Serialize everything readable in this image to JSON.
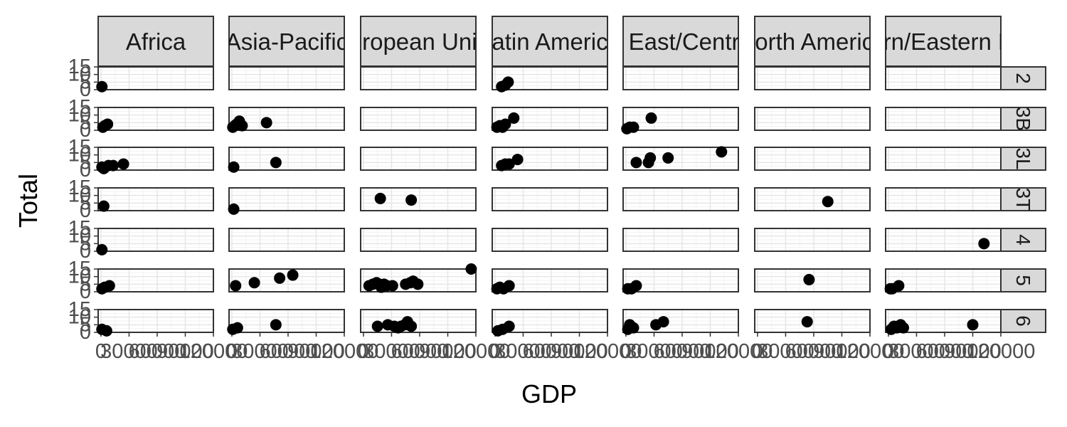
{
  "chart_data": {
    "type": "scatter",
    "facet_layout": "grid",
    "xlabel": "GDP",
    "ylabel": "Total",
    "xlim": [
      -3000,
      120000
    ],
    "ylim": [
      0,
      15
    ],
    "x_ticks": [
      0,
      30000,
      60000,
      90000,
      120000
    ],
    "y_ticks": [
      0,
      5,
      10,
      15
    ],
    "x_tick_labels": [
      "0",
      "30000",
      "60000",
      "90000",
      "120000"
    ],
    "y_tick_labels": [
      "0",
      "5",
      "10",
      "15"
    ],
    "grid": true,
    "legend": "none",
    "column_facets": [
      {
        "label_shown": "Africa"
      },
      {
        "label_shown": "Asia-Pacific"
      },
      {
        "label_shown": "European Union"
      },
      {
        "label_shown": "Latin America"
      },
      {
        "label_shown": "Middle East/Central Asia"
      },
      {
        "label_shown": "North America"
      },
      {
        "label_shown": "Northern/Eastern Europe"
      }
    ],
    "row_facets": [
      {
        "label": "2"
      },
      {
        "label": "3B"
      },
      {
        "label": "3L"
      },
      {
        "label": "3T"
      },
      {
        "label": "4"
      },
      {
        "label": "5"
      },
      {
        "label": "6"
      }
    ],
    "points": [
      {
        "col": 0,
        "row": 0,
        "x": 1000,
        "y": 2
      },
      {
        "col": 3,
        "row": 0,
        "x": 7000,
        "y": 2
      },
      {
        "col": 3,
        "row": 0,
        "x": 11000,
        "y": 3
      },
      {
        "col": 3,
        "row": 0,
        "x": 14000,
        "y": 5
      },
      {
        "col": 0,
        "row": 1,
        "x": 2000,
        "y": 2
      },
      {
        "col": 0,
        "row": 1,
        "x": 4000,
        "y": 3
      },
      {
        "col": 0,
        "row": 1,
        "x": 7000,
        "y": 4
      },
      {
        "col": 1,
        "row": 1,
        "x": 1000,
        "y": 2
      },
      {
        "col": 1,
        "row": 1,
        "x": 3000,
        "y": 3
      },
      {
        "col": 1,
        "row": 1,
        "x": 5000,
        "y": 4
      },
      {
        "col": 1,
        "row": 1,
        "x": 8000,
        "y": 6
      },
      {
        "col": 1,
        "row": 1,
        "x": 11000,
        "y": 3
      },
      {
        "col": 1,
        "row": 1,
        "x": 37000,
        "y": 5
      },
      {
        "col": 3,
        "row": 1,
        "x": 2000,
        "y": 2
      },
      {
        "col": 3,
        "row": 1,
        "x": 5000,
        "y": 3
      },
      {
        "col": 3,
        "row": 1,
        "x": 8000,
        "y": 2
      },
      {
        "col": 3,
        "row": 1,
        "x": 11000,
        "y": 4
      },
      {
        "col": 3,
        "row": 1,
        "x": 20000,
        "y": 8
      },
      {
        "col": 4,
        "row": 1,
        "x": 1000,
        "y": 1
      },
      {
        "col": 4,
        "row": 1,
        "x": 4000,
        "y": 2
      },
      {
        "col": 4,
        "row": 1,
        "x": 8000,
        "y": 2
      },
      {
        "col": 4,
        "row": 1,
        "x": 27000,
        "y": 8
      },
      {
        "col": 0,
        "row": 2,
        "x": 1000,
        "y": 2
      },
      {
        "col": 0,
        "row": 2,
        "x": 3000,
        "y": 1
      },
      {
        "col": 0,
        "row": 2,
        "x": 8000,
        "y": 3
      },
      {
        "col": 0,
        "row": 2,
        "x": 13000,
        "y": 3
      },
      {
        "col": 0,
        "row": 2,
        "x": 24000,
        "y": 4
      },
      {
        "col": 1,
        "row": 2,
        "x": 2000,
        "y": 2
      },
      {
        "col": 1,
        "row": 2,
        "x": 47000,
        "y": 5
      },
      {
        "col": 3,
        "row": 2,
        "x": 7000,
        "y": 3
      },
      {
        "col": 3,
        "row": 2,
        "x": 11000,
        "y": 4
      },
      {
        "col": 3,
        "row": 2,
        "x": 15000,
        "y": 4
      },
      {
        "col": 3,
        "row": 2,
        "x": 24000,
        "y": 7
      },
      {
        "col": 4,
        "row": 2,
        "x": 11000,
        "y": 5
      },
      {
        "col": 4,
        "row": 2,
        "x": 24000,
        "y": 5
      },
      {
        "col": 4,
        "row": 2,
        "x": 26000,
        "y": 8
      },
      {
        "col": 4,
        "row": 2,
        "x": 45000,
        "y": 8
      },
      {
        "col": 4,
        "row": 2,
        "x": 102000,
        "y": 12
      },
      {
        "col": 0,
        "row": 3,
        "x": 3000,
        "y": 3
      },
      {
        "col": 1,
        "row": 3,
        "x": 2000,
        "y": 1
      },
      {
        "col": 2,
        "row": 3,
        "x": 18000,
        "y": 8
      },
      {
        "col": 2,
        "row": 3,
        "x": 51000,
        "y": 7
      },
      {
        "col": 5,
        "row": 3,
        "x": 75000,
        "y": 6
      },
      {
        "col": 0,
        "row": 4,
        "x": 1000,
        "y": 1
      },
      {
        "col": 6,
        "row": 4,
        "x": 102000,
        "y": 5
      },
      {
        "col": 0,
        "row": 5,
        "x": 1000,
        "y": 2
      },
      {
        "col": 0,
        "row": 5,
        "x": 4000,
        "y": 3
      },
      {
        "col": 0,
        "row": 5,
        "x": 9000,
        "y": 4
      },
      {
        "col": 1,
        "row": 5,
        "x": 4000,
        "y": 4
      },
      {
        "col": 1,
        "row": 5,
        "x": 24000,
        "y": 6
      },
      {
        "col": 1,
        "row": 5,
        "x": 51000,
        "y": 9
      },
      {
        "col": 1,
        "row": 5,
        "x": 65000,
        "y": 11
      },
      {
        "col": 2,
        "row": 5,
        "x": 6000,
        "y": 4
      },
      {
        "col": 2,
        "row": 5,
        "x": 10000,
        "y": 5
      },
      {
        "col": 2,
        "row": 5,
        "x": 14000,
        "y": 6
      },
      {
        "col": 2,
        "row": 5,
        "x": 17000,
        "y": 5
      },
      {
        "col": 2,
        "row": 5,
        "x": 19000,
        "y": 3
      },
      {
        "col": 2,
        "row": 5,
        "x": 22000,
        "y": 5
      },
      {
        "col": 2,
        "row": 5,
        "x": 25000,
        "y": 4
      },
      {
        "col": 2,
        "row": 5,
        "x": 31000,
        "y": 4
      },
      {
        "col": 2,
        "row": 5,
        "x": 45000,
        "y": 5
      },
      {
        "col": 2,
        "row": 5,
        "x": 50000,
        "y": 6
      },
      {
        "col": 2,
        "row": 5,
        "x": 53000,
        "y": 7
      },
      {
        "col": 2,
        "row": 5,
        "x": 58000,
        "y": 5
      },
      {
        "col": 2,
        "row": 5,
        "x": 115000,
        "y": 15
      },
      {
        "col": 3,
        "row": 5,
        "x": 2000,
        "y": 2
      },
      {
        "col": 3,
        "row": 5,
        "x": 5000,
        "y": 3
      },
      {
        "col": 3,
        "row": 5,
        "x": 9000,
        "y": 2
      },
      {
        "col": 3,
        "row": 5,
        "x": 15000,
        "y": 4
      },
      {
        "col": 4,
        "row": 5,
        "x": 2000,
        "y": 2
      },
      {
        "col": 4,
        "row": 5,
        "x": 6000,
        "y": 2
      },
      {
        "col": 4,
        "row": 5,
        "x": 11000,
        "y": 4
      },
      {
        "col": 5,
        "row": 5,
        "x": 55000,
        "y": 8
      },
      {
        "col": 6,
        "row": 5,
        "x": 2000,
        "y": 2
      },
      {
        "col": 6,
        "row": 5,
        "x": 4000,
        "y": 2
      },
      {
        "col": 6,
        "row": 5,
        "x": 11000,
        "y": 4
      },
      {
        "col": 0,
        "row": 6,
        "x": 1000,
        "y": 2
      },
      {
        "col": 0,
        "row": 6,
        "x": 6000,
        "y": 1
      },
      {
        "col": 1,
        "row": 6,
        "x": 1000,
        "y": 2
      },
      {
        "col": 1,
        "row": 6,
        "x": 6000,
        "y": 3
      },
      {
        "col": 1,
        "row": 6,
        "x": 47000,
        "y": 5
      },
      {
        "col": 2,
        "row": 6,
        "x": 15000,
        "y": 4
      },
      {
        "col": 2,
        "row": 6,
        "x": 26000,
        "y": 5
      },
      {
        "col": 2,
        "row": 6,
        "x": 33000,
        "y": 4
      },
      {
        "col": 2,
        "row": 6,
        "x": 37000,
        "y": 3
      },
      {
        "col": 2,
        "row": 6,
        "x": 40000,
        "y": 4
      },
      {
        "col": 2,
        "row": 6,
        "x": 44000,
        "y": 5
      },
      {
        "col": 2,
        "row": 6,
        "x": 47000,
        "y": 7
      },
      {
        "col": 2,
        "row": 6,
        "x": 51000,
        "y": 4
      },
      {
        "col": 3,
        "row": 6,
        "x": 3000,
        "y": 1
      },
      {
        "col": 3,
        "row": 6,
        "x": 8000,
        "y": 2
      },
      {
        "col": 3,
        "row": 6,
        "x": 15000,
        "y": 4
      },
      {
        "col": 4,
        "row": 6,
        "x": 2000,
        "y": 2
      },
      {
        "col": 4,
        "row": 6,
        "x": 4000,
        "y": 5
      },
      {
        "col": 4,
        "row": 6,
        "x": 8000,
        "y": 3
      },
      {
        "col": 4,
        "row": 6,
        "x": 32000,
        "y": 5
      },
      {
        "col": 4,
        "row": 6,
        "x": 40000,
        "y": 7
      },
      {
        "col": 5,
        "row": 6,
        "x": 53000,
        "y": 7
      },
      {
        "col": 6,
        "row": 6,
        "x": 3000,
        "y": 2
      },
      {
        "col": 6,
        "row": 6,
        "x": 6000,
        "y": 4
      },
      {
        "col": 6,
        "row": 6,
        "x": 9000,
        "y": 3
      },
      {
        "col": 6,
        "row": 6,
        "x": 13000,
        "y": 5
      },
      {
        "col": 6,
        "row": 6,
        "x": 16000,
        "y": 3
      },
      {
        "col": 6,
        "row": 6,
        "x": 90000,
        "y": 5
      }
    ]
  }
}
